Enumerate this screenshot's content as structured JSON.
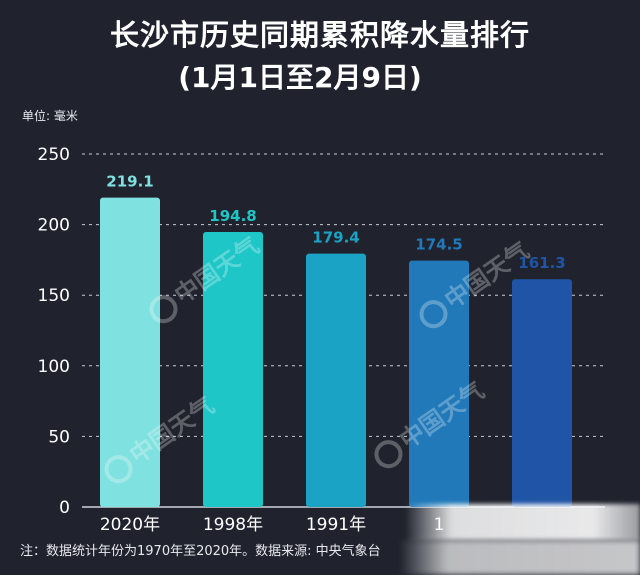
{
  "header": {
    "title_line1": "长沙市历史同期累积降水量排行",
    "title_line2": "(1月1日至2月9日)",
    "unit": "单位: 毫米"
  },
  "footnote": "注：数据统计年份为1970年至2020年。数据来源: 中央气象台",
  "watermark": "中国天气",
  "colors": {
    "background": "#20232e",
    "bars": [
      "#7fe1e0",
      "#1ec6c8",
      "#1aa3c4",
      "#2179b9",
      "#1f54a6"
    ],
    "labels": [
      "#7fe1e0",
      "#1ec6c8",
      "#1aa3c4",
      "#2179b9",
      "#1f54a6"
    ]
  },
  "chart_data": {
    "type": "bar",
    "categories": [
      "2020年",
      "1998年",
      "1991年",
      "1",
      ""
    ],
    "values": [
      219.1,
      194.8,
      179.4,
      174.5,
      161.3
    ],
    "value_labels": [
      "219.1",
      "194.8",
      "179.4",
      "174.5",
      "161.3"
    ],
    "ylabel": "单位: 毫米",
    "ylim": [
      0,
      250
    ],
    "yticks": [
      "0",
      "50",
      "100",
      "150",
      "200",
      "250"
    ],
    "grid": true
  }
}
